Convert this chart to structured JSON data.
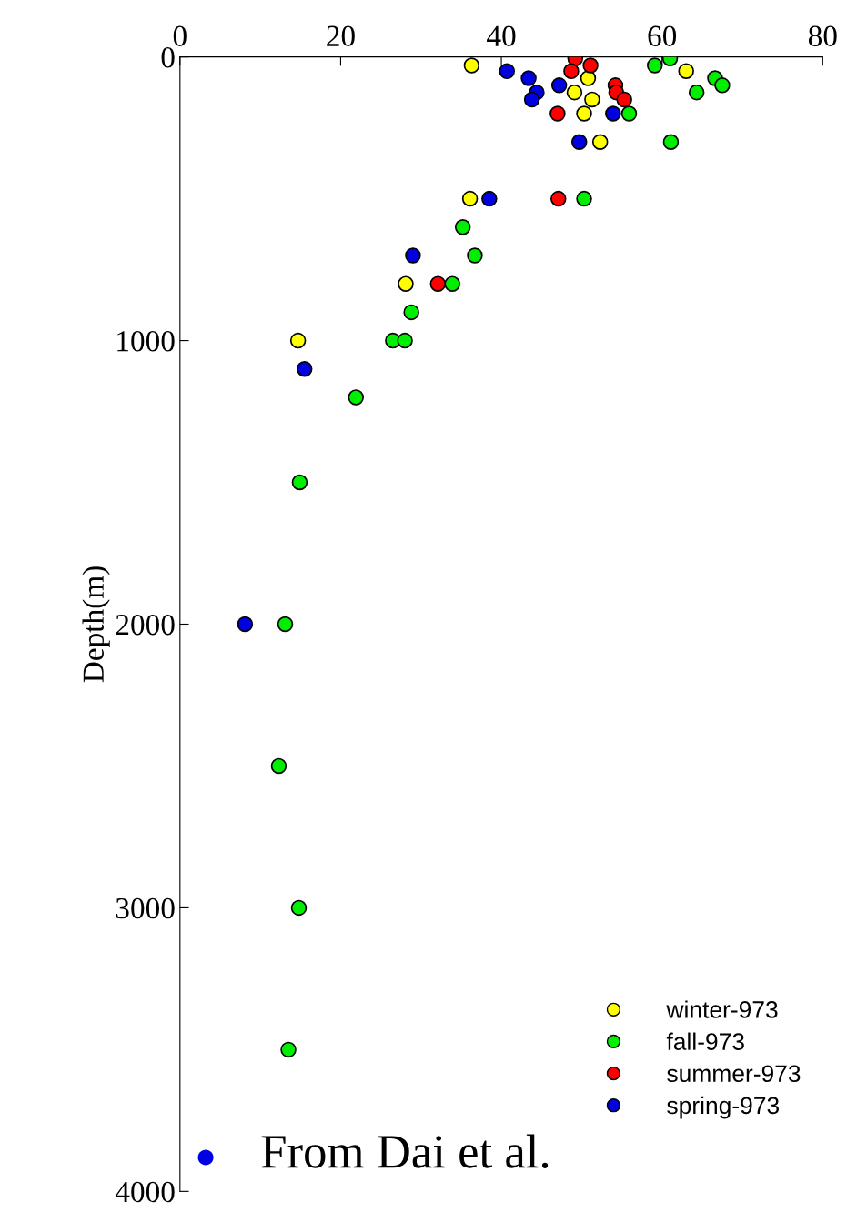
{
  "chart_data": {
    "type": "scatter",
    "ylabel": "Depth(m)",
    "xlim": [
      0,
      80
    ],
    "xticks": [
      0,
      20,
      40,
      60,
      80
    ],
    "ylim": [
      4000,
      0
    ],
    "yticks": [
      0,
      1000,
      2000,
      3000,
      4000
    ],
    "grid": false,
    "legend": "bottom right",
    "marker": "circle",
    "tick_labels": true,
    "series": [
      {
        "name": "winter-973",
        "color": "#ffff00",
        "x": [
          36.3,
          50.8,
          49.1,
          51.3,
          50.3,
          63.0,
          52.3,
          36.1,
          28.1,
          14.7
        ],
        "values": [
          30,
          75,
          125,
          150,
          200,
          50,
          300,
          500,
          800,
          1000
        ]
      },
      {
        "name": "fall-973",
        "color": "#00ee00",
        "x": [
          59.1,
          61.0,
          66.6,
          67.5,
          64.3,
          55.9,
          61.1,
          50.3,
          35.2,
          36.7,
          33.9,
          28.8,
          26.5,
          28.0,
          21.9,
          14.9,
          13.1,
          12.3,
          14.8,
          13.5
        ],
        "values": [
          30,
          5,
          75,
          100,
          125,
          200,
          300,
          500,
          600,
          700,
          800,
          900,
          1000,
          1000,
          1200,
          1500,
          2000,
          2500,
          3000,
          3500
        ]
      },
      {
        "name": "summer-973",
        "color": "#ff0000",
        "x": [
          49.2,
          51.1,
          48.7,
          54.2,
          54.3,
          55.3,
          47.0,
          47.1,
          32.1
        ],
        "values": [
          5,
          30,
          50,
          100,
          125,
          150,
          200,
          500,
          800
        ]
      },
      {
        "name": "spring-973",
        "color": "#0000e0",
        "x": [
          40.7,
          43.4,
          44.4,
          43.8,
          47.2,
          53.9,
          49.7,
          38.5,
          29.0,
          15.5,
          8.1
        ],
        "values": [
          50,
          75,
          125,
          150,
          100,
          200,
          300,
          500,
          700,
          1100,
          2000
        ]
      }
    ],
    "annotations": [
      "From Dai et al."
    ]
  }
}
